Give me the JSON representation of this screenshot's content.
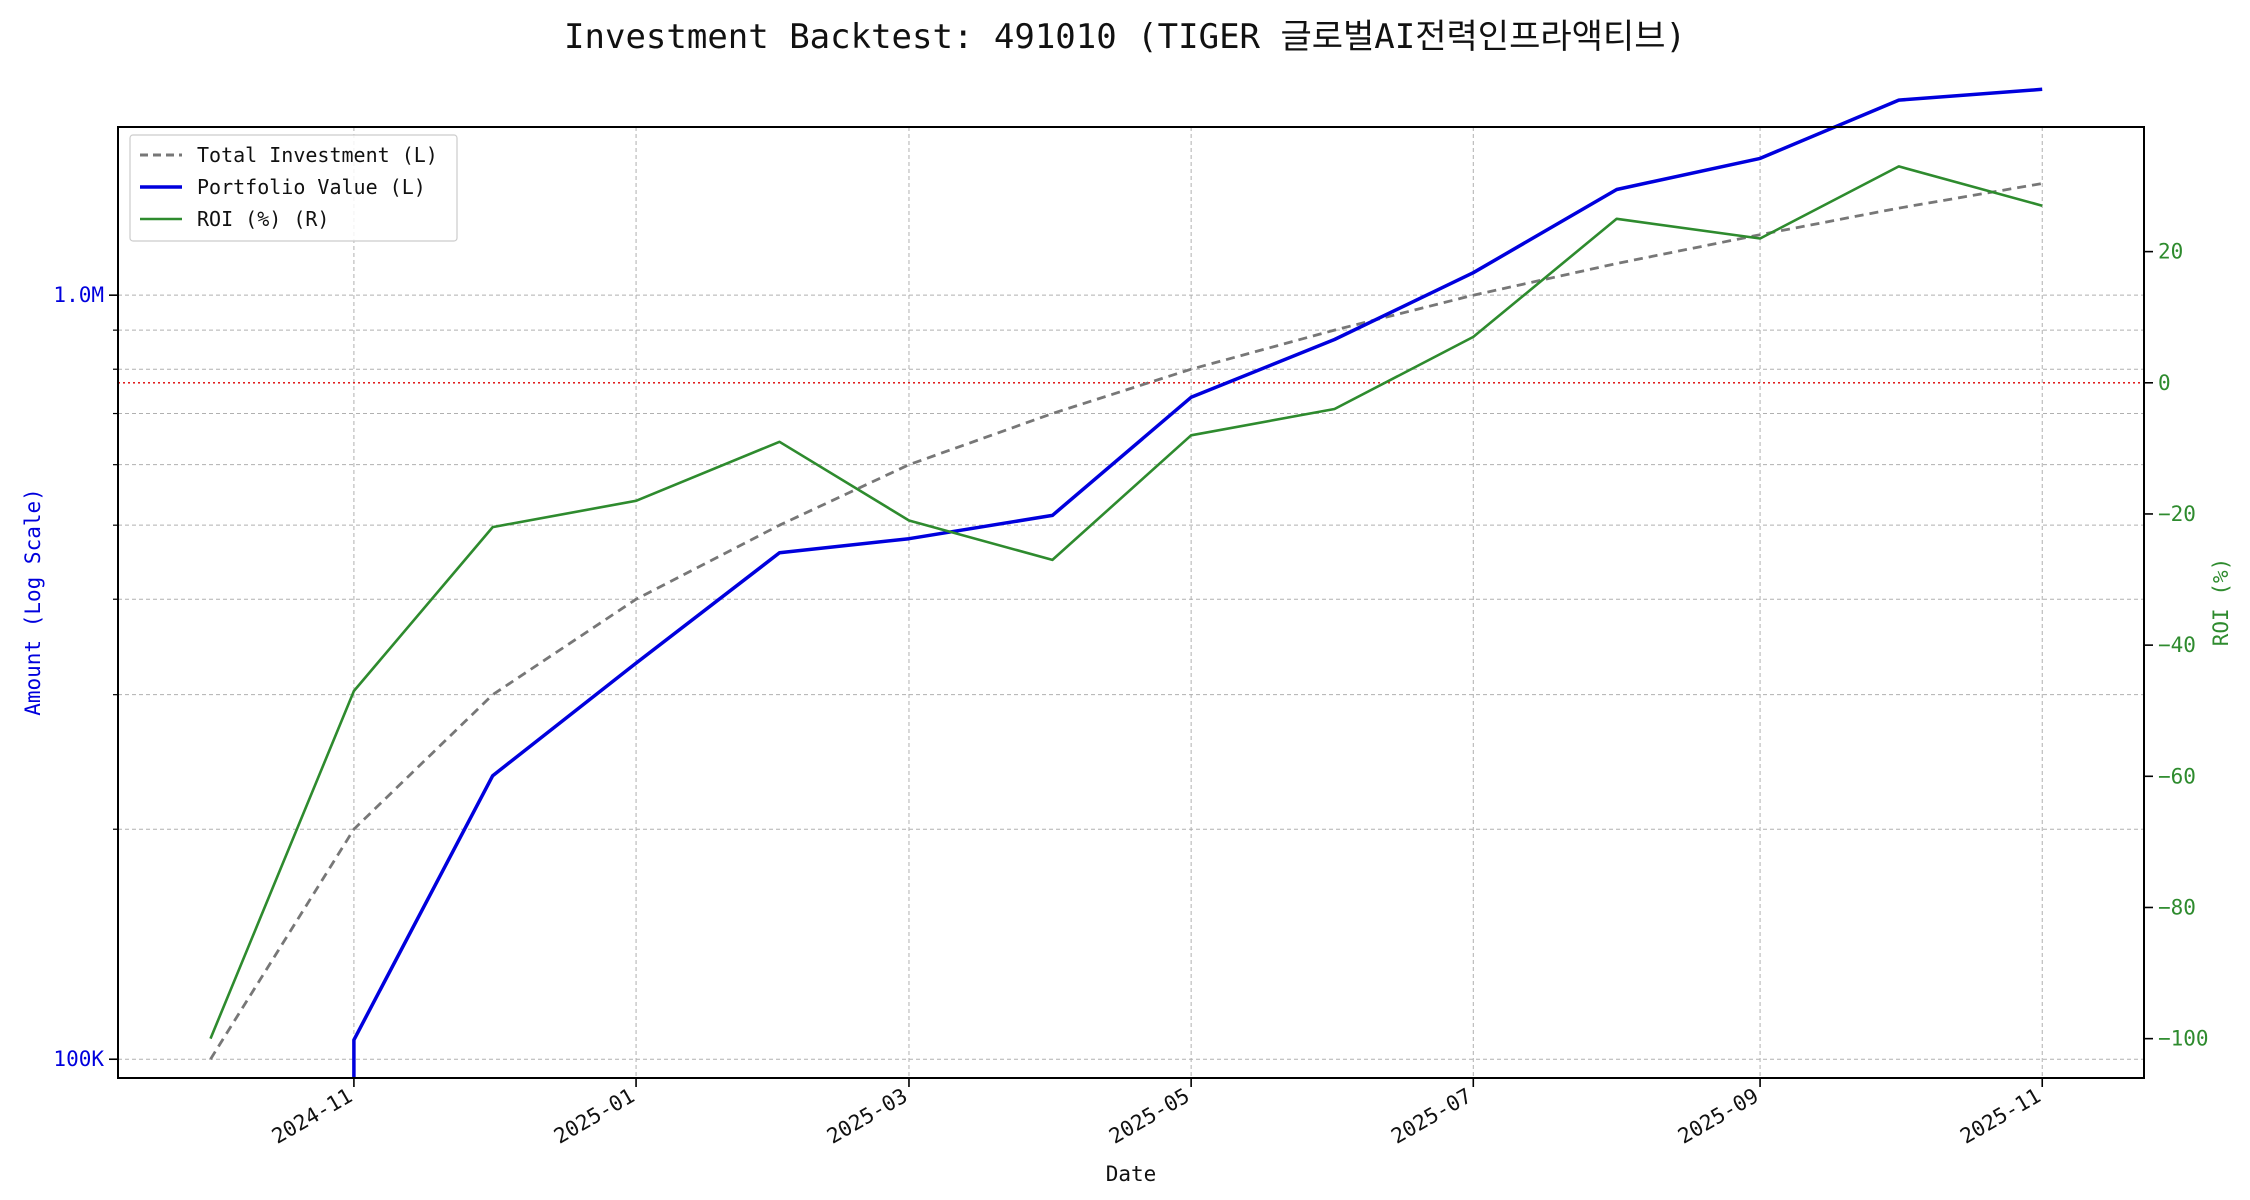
{
  "chart_data": {
    "type": "line",
    "title": "Investment Backtest: 491010 (TIGER 글로벌AI전력인프라액티브)",
    "xlabel": "Date",
    "ylabel_left": "Amount (Log Scale)",
    "ylabel_right": "ROI (%)",
    "left_scale": "log",
    "left_ylim": [
      94500,
      1660000
    ],
    "right_ylim": [
      -106,
      39
    ],
    "x_range": [
      "2024-09-11",
      "2025-11-23"
    ],
    "grid": true,
    "legend_position": "top-left",
    "x_ticks": [
      "2024-11",
      "2025-01",
      "2025-03",
      "2025-05",
      "2025-07",
      "2025-09",
      "2025-11"
    ],
    "x_tick_dates": [
      "2024-11-01",
      "2025-01-01",
      "2025-03-01",
      "2025-05-01",
      "2025-07-01",
      "2025-09-01",
      "2025-11-01"
    ],
    "left_ticks": [
      "100K",
      "1.0M"
    ],
    "left_tick_values": [
      100000,
      1000000
    ],
    "left_minor_values": [
      200000,
      300000,
      400000,
      500000,
      600000,
      700000,
      800000,
      900000
    ],
    "right_ticks": [
      "−100",
      "−80",
      "−60",
      "−40",
      "−20",
      "0",
      "20"
    ],
    "right_tick_values": [
      -100,
      -80,
      -60,
      -40,
      -20,
      0,
      20
    ],
    "zero_line": {
      "axis": "right",
      "value": 0,
      "color": "#dd0000"
    },
    "series": [
      {
        "name": "Total Investment (L)",
        "axis": "left",
        "color": "#777777",
        "dash": true,
        "x": [
          "2024-10-01",
          "2024-11-01",
          "2024-12-01",
          "2025-01-01",
          "2025-02-01",
          "2025-03-01",
          "2025-04-01",
          "2025-05-01",
          "2025-06-01",
          "2025-07-01",
          "2025-08-01",
          "2025-09-01",
          "2025-10-01",
          "2025-11-01"
        ],
        "y": [
          100000,
          200000,
          300000,
          400000,
          500000,
          600000,
          700000,
          800000,
          900000,
          1000000,
          1100000,
          1200000,
          1300000,
          1400000
        ]
      },
      {
        "name": "Portfolio Value (L)",
        "axis": "left",
        "color": "#0000dd",
        "dash": false,
        "x": [
          "2024-11-01",
          "2024-11-01",
          "2024-12-01",
          "2025-01-01",
          "2025-02-01",
          "2025-03-01",
          "2025-04-01",
          "2025-05-01",
          "2025-06-01",
          "2025-07-01",
          "2025-08-01",
          "2025-09-01",
          "2025-10-01",
          "2025-11-01"
        ],
        "y": [
          94500,
          106000,
          235000,
          330000,
          460000,
          480000,
          515000,
          735000,
          875000,
          1070000,
          1375000,
          1510000,
          1800000,
          1860000
        ]
      },
      {
        "name": "ROI (%) (R)",
        "axis": "right",
        "color": "#2e8b2e",
        "dash": false,
        "x": [
          "2024-10-01",
          "2024-11-01",
          "2024-12-01",
          "2025-01-01",
          "2025-02-01",
          "2025-03-01",
          "2025-04-01",
          "2025-05-01",
          "2025-06-01",
          "2025-07-01",
          "2025-08-01",
          "2025-09-01",
          "2025-10-01",
          "2025-11-01"
        ],
        "y": [
          -100,
          -47,
          -22,
          -18,
          -9,
          -21,
          -27,
          -8,
          -4,
          7,
          25,
          22,
          33,
          27
        ]
      }
    ]
  }
}
